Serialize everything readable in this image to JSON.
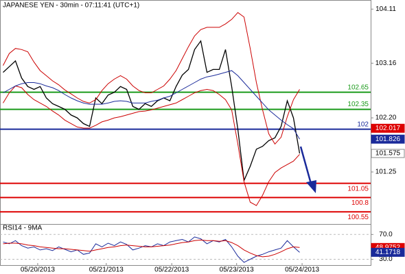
{
  "chart_data": [
    {
      "type": "price",
      "title": "JAPANESE YEN - 30min - 07:11:41 (UTC+1)",
      "x": [
        0,
        1,
        2,
        3,
        4,
        5,
        6,
        7,
        8,
        9,
        10,
        11,
        12,
        13,
        14,
        15,
        16,
        17,
        18,
        19,
        20,
        21,
        22,
        23,
        24,
        25,
        26,
        27,
        28,
        29,
        30,
        31,
        32,
        33,
        34,
        35,
        36,
        37,
        38,
        39,
        40,
        41,
        42,
        43,
        44,
        45,
        46,
        47,
        48
      ],
      "xlim": [
        -0.5,
        59.5
      ],
      "xticks": [
        {
          "value": 5.6,
          "label": "05/20/2013"
        },
        {
          "value": 16.7,
          "label": "05/21/2013"
        },
        {
          "value": 27.3,
          "label": "05/22/2013"
        },
        {
          "value": 37.8,
          "label": "05/23/2013"
        },
        {
          "value": 48.4,
          "label": "05/24/2013"
        }
      ],
      "ylim": [
        100.36,
        104.27
      ],
      "yticks": [
        104.11,
        103.16,
        {
          "value": 102.2,
          "label": "102.20"
        },
        101.25
      ],
      "series": [
        {
          "name": "close",
          "color": "#000000",
          "values": [
            103.0,
            103.1,
            103.2,
            102.9,
            102.75,
            102.7,
            102.75,
            102.55,
            102.45,
            102.4,
            102.35,
            102.25,
            102.2,
            102.1,
            102.05,
            102.55,
            102.45,
            102.6,
            102.65,
            102.75,
            102.7,
            102.4,
            102.35,
            102.45,
            102.4,
            102.5,
            102.55,
            102.5,
            102.75,
            102.95,
            103.05,
            103.4,
            103.55,
            103.0,
            103.05,
            103.05,
            103.4,
            102.75,
            102.0,
            101.1,
            101.35,
            101.65,
            101.7,
            101.8,
            101.85,
            102.05,
            102.5,
            102.2,
            101.575
          ]
        },
        {
          "name": "upper",
          "color": "#cc0000",
          "values": [
            103.12,
            103.33,
            103.42,
            103.4,
            103.36,
            103.18,
            103.03,
            102.94,
            102.85,
            102.78,
            102.69,
            102.62,
            102.55,
            102.49,
            102.46,
            102.52,
            102.68,
            102.8,
            102.88,
            102.94,
            102.88,
            102.76,
            102.68,
            102.64,
            102.64,
            102.7,
            102.76,
            102.88,
            103.03,
            103.24,
            103.45,
            103.64,
            103.75,
            103.79,
            103.79,
            103.79,
            103.85,
            103.93,
            104.05,
            103.97,
            103.42,
            102.82,
            102.34,
            101.92,
            101.74,
            101.86,
            102.22,
            102.52,
            102.7
          ]
        },
        {
          "name": "lower",
          "color": "#cc0000",
          "values": [
            102.46,
            102.64,
            102.76,
            102.73,
            102.61,
            102.52,
            102.46,
            102.4,
            102.32,
            102.25,
            102.16,
            102.1,
            102.04,
            102.02,
            102.02,
            102.07,
            102.13,
            102.16,
            102.2,
            102.22,
            102.25,
            102.28,
            102.31,
            102.32,
            102.34,
            102.37,
            102.4,
            102.43,
            102.46,
            102.52,
            102.58,
            102.64,
            102.68,
            102.7,
            102.68,
            102.61,
            102.52,
            102.34,
            101.74,
            101.08,
            100.72,
            100.66,
            100.84,
            101.08,
            101.24,
            101.32,
            101.38,
            101.44,
            101.56
          ]
        },
        {
          "name": "ma",
          "color": "#1a2a9a",
          "values": [
            102.64,
            102.7,
            102.76,
            102.8,
            102.82,
            102.82,
            102.8,
            102.76,
            102.73,
            102.68,
            102.61,
            102.55,
            102.5,
            102.46,
            102.44,
            102.44,
            102.44,
            102.46,
            102.49,
            102.5,
            102.49,
            102.46,
            102.46,
            102.46,
            102.49,
            102.51,
            102.55,
            102.58,
            102.64,
            102.7,
            102.76,
            102.82,
            102.88,
            102.92,
            102.94,
            102.97,
            103.0,
            103.03,
            102.94,
            102.82,
            102.7,
            102.58,
            102.46,
            102.34,
            102.25,
            102.16,
            102.08,
            102.01,
            101.826
          ]
        }
      ],
      "levels": [
        {
          "value": 102.65,
          "color": "#1a9a1a"
        },
        {
          "value": 102.35,
          "color": "#1a9a1a"
        },
        {
          "value": 102,
          "color": "#1a2a9a"
        },
        {
          "value": 101.05,
          "color": "#dd0000"
        },
        {
          "value": 100.8,
          "color": "#dd0000"
        },
        {
          "value": 100.55,
          "color": "#dd0000"
        }
      ],
      "tags": [
        {
          "value": 102.017,
          "color": "#dd0000"
        },
        {
          "value": 101.826,
          "color": "#1a2a9a"
        },
        {
          "value": 101.575,
          "color": "#ffffff"
        }
      ]
    },
    {
      "type": "line",
      "title": "RSI14 - 9MA",
      "xlim": [
        -0.5,
        59.5
      ],
      "ylim": [
        19.5,
        85.8
      ],
      "yticks": [
        {
          "value": 70,
          "label": "70.0"
        },
        {
          "value": 30,
          "label": "30.0"
        }
      ],
      "series": [
        {
          "name": "rsi",
          "color": "#1a2a9a",
          "values": [
            58,
            55,
            60,
            52,
            48,
            50,
            45,
            47,
            44,
            50,
            46,
            42,
            45,
            38,
            40,
            55,
            50,
            56,
            52,
            58,
            54,
            45,
            48,
            52,
            50,
            55,
            52,
            58,
            60,
            62,
            58,
            66,
            63,
            55,
            60,
            58,
            62,
            50,
            35,
            25,
            30,
            35,
            38,
            42,
            45,
            48,
            60,
            50,
            41.1718
          ]
        },
        {
          "name": "rsi-ma",
          "color": "#cc0000",
          "values": [
            55,
            56,
            56,
            55,
            53,
            52,
            50,
            49,
            48,
            47,
            47,
            46,
            45,
            44,
            43,
            45,
            47,
            49,
            50,
            52,
            53,
            52,
            51,
            50,
            50,
            51,
            52,
            53,
            55,
            57,
            58,
            60,
            61,
            60,
            60,
            59,
            60,
            57,
            52,
            45,
            40,
            36,
            34,
            35,
            38,
            42,
            47,
            50,
            48.9752
          ]
        }
      ],
      "tags": [
        {
          "value": 48.9752,
          "color": "#dd0000"
        },
        {
          "value": 41.1718,
          "color": "#1a2a9a"
        }
      ]
    }
  ]
}
